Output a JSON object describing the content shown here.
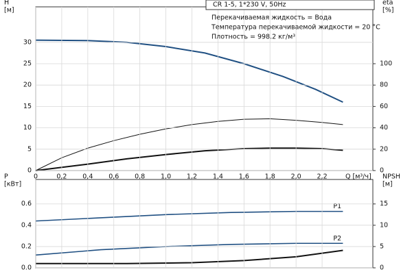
{
  "info": {
    "title": "CR 1-5, 1*230 V, 50Hz",
    "lines": [
      "Перекачиваемая жидкость = Вода",
      "Температура перекачиваемой жидкости = 20 °C",
      "Плотность = 998.2 кг/м³"
    ]
  },
  "chart_data": [
    {
      "type": "line",
      "y_label": [
        "H",
        "[м]"
      ],
      "y2_label": [
        "eta",
        "[%]"
      ],
      "x_label": "Q [м³/ч]",
      "xlim": [
        0,
        2.59
      ],
      "xticks": [
        0,
        {
          "value": 0.2,
          "label": "0,2"
        },
        {
          "value": 0.4,
          "label": "0,4"
        },
        {
          "value": 0.6,
          "label": "0,6"
        },
        {
          "value": 0.8,
          "label": "0,8"
        },
        {
          "value": 1.0,
          "label": "1,0"
        },
        {
          "value": 1.2,
          "label": "1,2"
        },
        {
          "value": 1.4,
          "label": "1,4"
        },
        {
          "value": 1.6,
          "label": "1,6"
        },
        {
          "value": 1.8,
          "label": "1,8"
        },
        {
          "value": 2.0,
          "label": "2,0"
        },
        {
          "value": 2.2,
          "label": "2,2"
        }
      ],
      "ylim": [
        0,
        38.3
      ],
      "yticks": [
        0,
        5,
        10,
        15,
        20,
        25,
        30
      ],
      "y2lim": [
        0,
        153.2
      ],
      "y2ticks": [
        0,
        20,
        40,
        60,
        80,
        100
      ],
      "grid": true,
      "series": [
        {
          "color": "#1f4f82",
          "width": 2,
          "x": [
            0,
            0.4,
            0.7,
            1.0,
            1.3,
            1.6,
            1.9,
            2.15,
            2.36
          ],
          "values": [
            30.5,
            30.4,
            30,
            29,
            27.5,
            25,
            22,
            19,
            16
          ]
        },
        {
          "color": "#111111",
          "width": 1,
          "axis": "y2",
          "x": [
            0,
            0.2,
            0.4,
            0.6,
            0.8,
            1.0,
            1.2,
            1.4,
            1.6,
            1.8,
            2.0,
            2.2,
            2.36
          ],
          "values": [
            0,
            12,
            21,
            28,
            34,
            39,
            43,
            46,
            48,
            48.5,
            47,
            45,
            43
          ]
        },
        {
          "color": "#111111",
          "width": 2,
          "axis": "y2",
          "x": [
            0,
            0.4,
            0.7,
            1.0,
            1.3,
            1.6,
            1.8,
            2.0,
            2.2,
            2.36
          ],
          "values": [
            0,
            6,
            11,
            15,
            18.5,
            20.5,
            21,
            21,
            20.5,
            19
          ]
        }
      ]
    },
    {
      "type": "line",
      "y_label": [
        "P",
        "[кВт]"
      ],
      "y2_label": [
        "NPSH",
        "[м]"
      ],
      "xlim": [
        0,
        2.59
      ],
      "ylim": [
        0,
        0.83
      ],
      "yticks": [
        {
          "value": 0,
          "label": "0.0"
        },
        0.2,
        0.4,
        0.6
      ],
      "y2lim": [
        0,
        20.75
      ],
      "y2ticks": [
        0,
        5,
        10,
        15
      ],
      "grid": true,
      "series": [
        {
          "name": "P1",
          "color": "#1f4f82",
          "width": 1.6,
          "x": [
            0,
            0.5,
            1.0,
            1.5,
            2.0,
            2.36
          ],
          "values": [
            0.44,
            0.47,
            0.5,
            0.52,
            0.53,
            0.53
          ]
        },
        {
          "name": "P2",
          "color": "#1f4f82",
          "width": 1.6,
          "x": [
            0,
            0.5,
            1.0,
            1.5,
            2.0,
            2.36
          ],
          "values": [
            0.12,
            0.17,
            0.2,
            0.22,
            0.23,
            0.23
          ]
        },
        {
          "color": "#111111",
          "width": 2,
          "axis": "y2",
          "x": [
            0,
            0.7,
            1.2,
            1.6,
            2.0,
            2.36
          ],
          "values": [
            1,
            1,
            1.2,
            1.7,
            2.6,
            4.1
          ]
        }
      ]
    }
  ]
}
